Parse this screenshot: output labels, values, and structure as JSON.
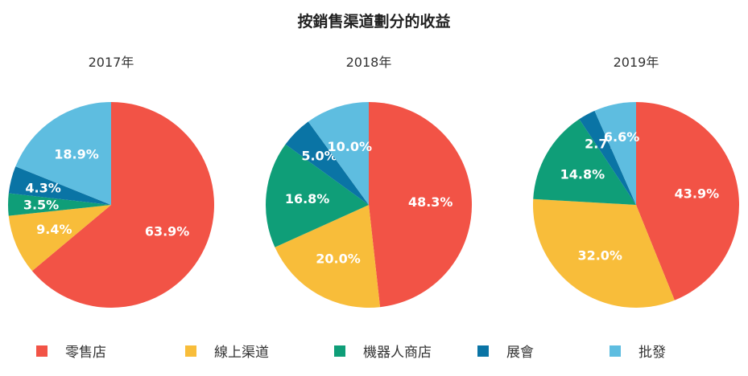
{
  "chart_data": {
    "type": "pie",
    "title": "按銷售渠道劃分的收益",
    "legend": [
      {
        "name": "零售店",
        "color": "#f25346"
      },
      {
        "name": "線上渠道",
        "color": "#f8bd3a"
      },
      {
        "name": "機器人商店",
        "color": "#0f9e78"
      },
      {
        "name": "展會",
        "color": "#0a74a5"
      },
      {
        "name": "批發",
        "color": "#5ebde0"
      }
    ],
    "charts": [
      {
        "title": "2017年",
        "slices": [
          {
            "name": "零售店",
            "value": 63.9,
            "label": "63.9%"
          },
          {
            "name": "線上渠道",
            "value": 9.4,
            "label": "9.4%"
          },
          {
            "name": "機器人商店",
            "value": 3.5,
            "label": "3.5%"
          },
          {
            "name": "展會",
            "value": 4.3,
            "label": "4.3%"
          },
          {
            "name": "批發",
            "value": 18.9,
            "label": "18.9%"
          }
        ]
      },
      {
        "title": "2018年",
        "slices": [
          {
            "name": "零售店",
            "value": 48.3,
            "label": "48.3%"
          },
          {
            "name": "線上渠道",
            "value": 20.0,
            "label": "20.0%"
          },
          {
            "name": "機器人商店",
            "value": 16.8,
            "label": "16.8%"
          },
          {
            "name": "展會",
            "value": 5.0,
            "label": "5.0%"
          },
          {
            "name": "批發",
            "value": 10.0,
            "label": "10.0%"
          }
        ]
      },
      {
        "title": "2019年",
        "slices": [
          {
            "name": "零售店",
            "value": 43.9,
            "label": "43.9%"
          },
          {
            "name": "線上渠道",
            "value": 32.0,
            "label": "32.0%"
          },
          {
            "name": "機器人商店",
            "value": 14.8,
            "label": "14.8%"
          },
          {
            "name": "展會",
            "value": 2.7,
            "label": "2.7%"
          },
          {
            "name": "批發",
            "value": 6.6,
            "label": "6.6%"
          }
        ]
      }
    ]
  }
}
